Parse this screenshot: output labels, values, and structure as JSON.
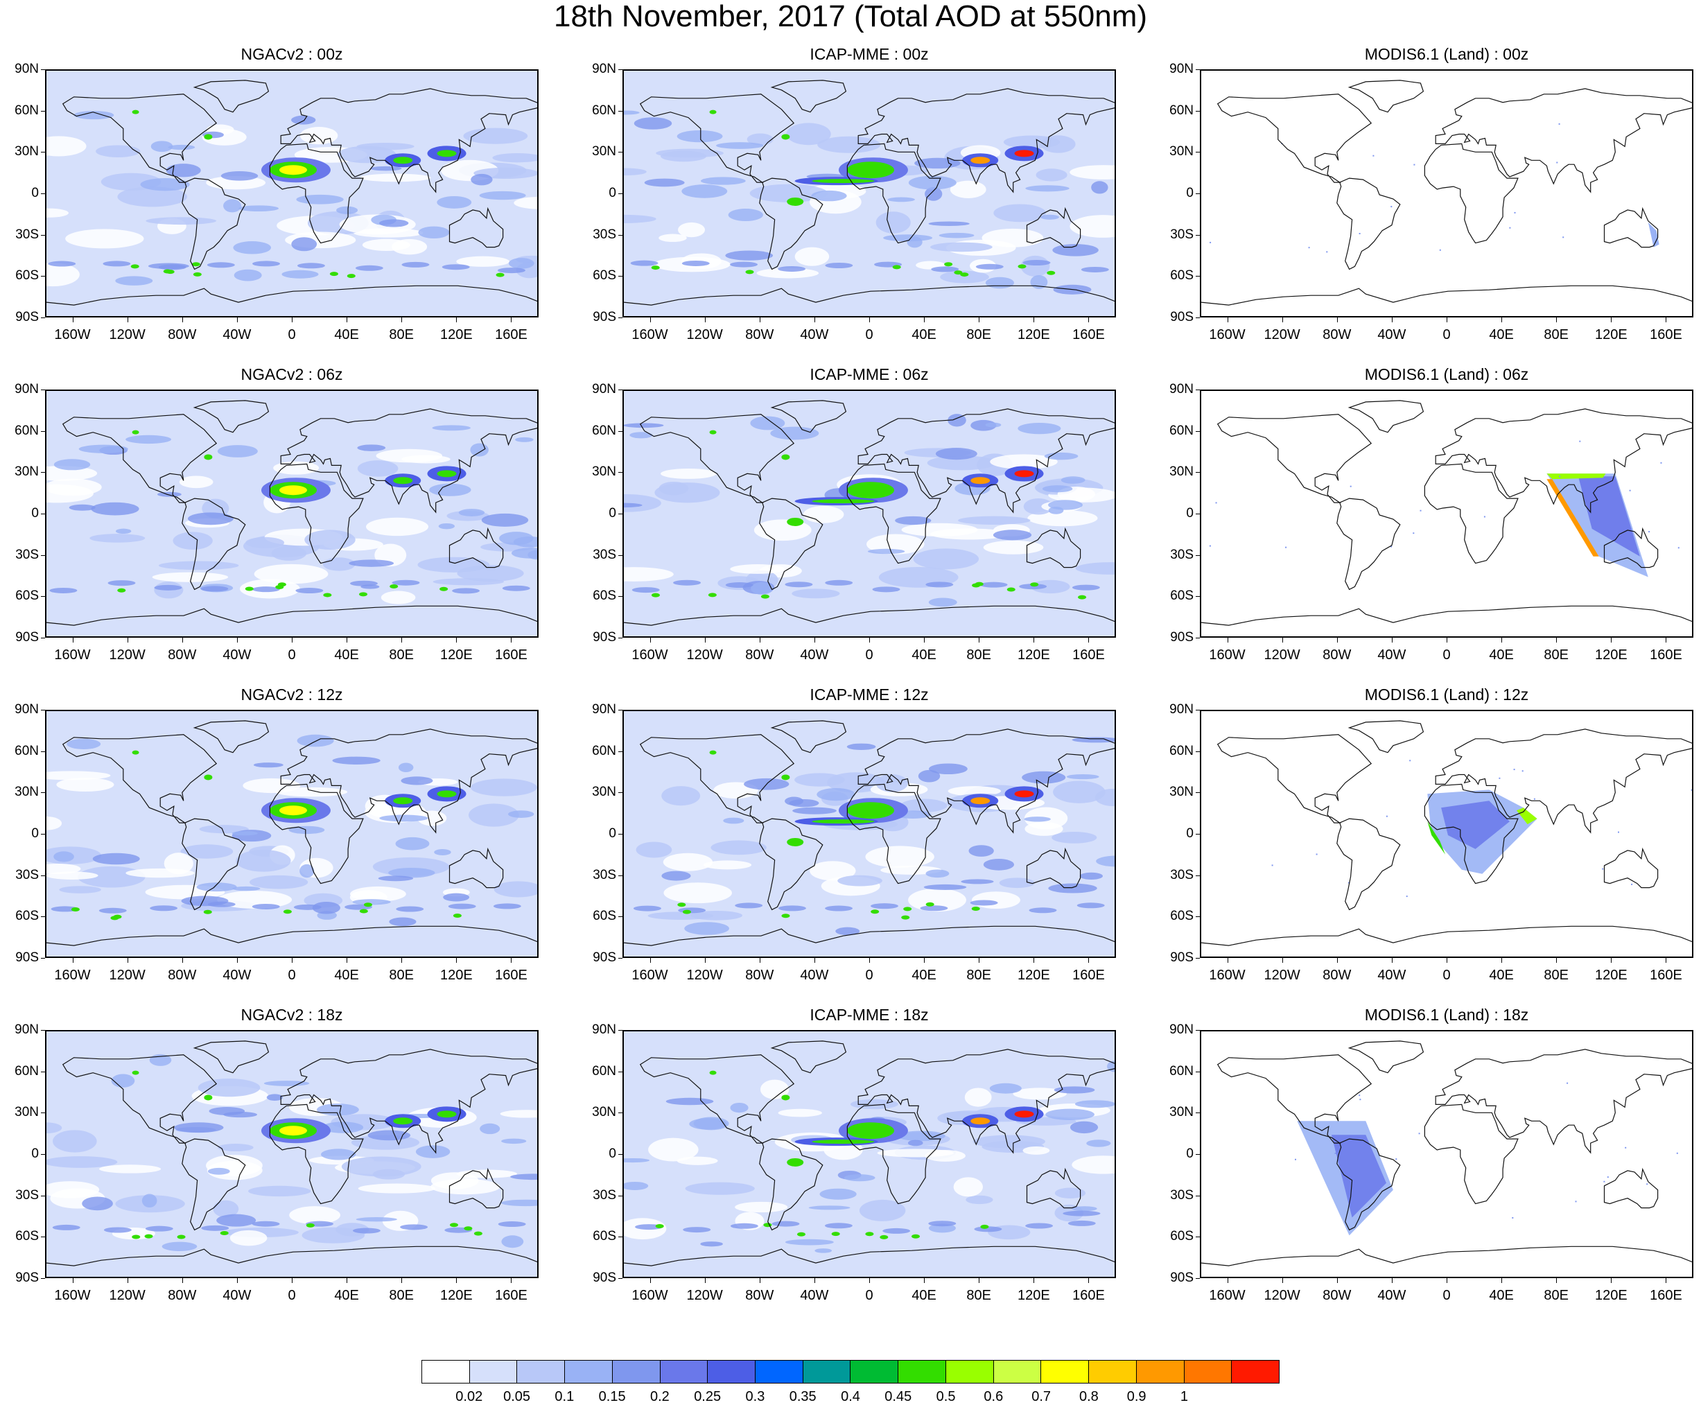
{
  "title": "18th November, 2017 (Total AOD at 550nm)",
  "panels": [
    {
      "title": "NGACv2 : 00z",
      "kind": "model",
      "dust": 0.9,
      "seed": 1
    },
    {
      "title": "ICAP-MME : 00z",
      "kind": "model",
      "dust": 1.0,
      "seed": 2
    },
    {
      "title": "MODIS6.1 (Land) : 00z",
      "kind": "obs",
      "swath": "east-tip",
      "seed": 3
    },
    {
      "title": "NGACv2 : 06z",
      "kind": "model",
      "dust": 0.9,
      "seed": 4
    },
    {
      "title": "ICAP-MME : 06z",
      "kind": "model",
      "dust": 1.0,
      "seed": 5
    },
    {
      "title": "MODIS6.1 (Land) : 06z",
      "kind": "obs",
      "swath": "asia",
      "seed": 6
    },
    {
      "title": "NGACv2 : 12z",
      "kind": "model",
      "dust": 0.9,
      "seed": 7
    },
    {
      "title": "ICAP-MME : 12z",
      "kind": "model",
      "dust": 1.0,
      "seed": 8
    },
    {
      "title": "MODIS6.1 (Land) : 12z",
      "kind": "obs",
      "swath": "africa",
      "seed": 9
    },
    {
      "title": "NGACv2 : 18z",
      "kind": "model",
      "dust": 0.9,
      "seed": 10
    },
    {
      "title": "ICAP-MME : 18z",
      "kind": "model",
      "dust": 1.0,
      "seed": 11
    },
    {
      "title": "MODIS6.1 (Land) : 18z",
      "kind": "obs",
      "swath": "samerica",
      "seed": 12
    }
  ],
  "lat_labels": [
    "90N",
    "60N",
    "30N",
    "0",
    "30S",
    "60S",
    "90S"
  ],
  "lon_labels": [
    "160W",
    "120W",
    "80W",
    "40W",
    "0",
    "40E",
    "80E",
    "120E",
    "160E"
  ],
  "lon_values": [
    -160,
    -120,
    -80,
    -40,
    0,
    40,
    80,
    120,
    160
  ],
  "colorbar": {
    "colors": [
      "#ffffff",
      "#d6e0fb",
      "#b8c8f8",
      "#99b2f5",
      "#7f97ee",
      "#6a78ea",
      "#4d5ee6",
      "#0066ff",
      "#009999",
      "#00bb33",
      "#33dd00",
      "#99ff00",
      "#ccff44",
      "#ffff00",
      "#ffcc00",
      "#ff9900",
      "#ff7700",
      "#ff1a00"
    ],
    "labels": [
      "0.02",
      "0.05",
      "0.1",
      "0.15",
      "0.2",
      "0.25",
      "0.3",
      "0.35",
      "0.4",
      "0.45",
      "0.5",
      "0.6",
      "0.7",
      "0.8",
      "0.9",
      "1"
    ]
  }
}
